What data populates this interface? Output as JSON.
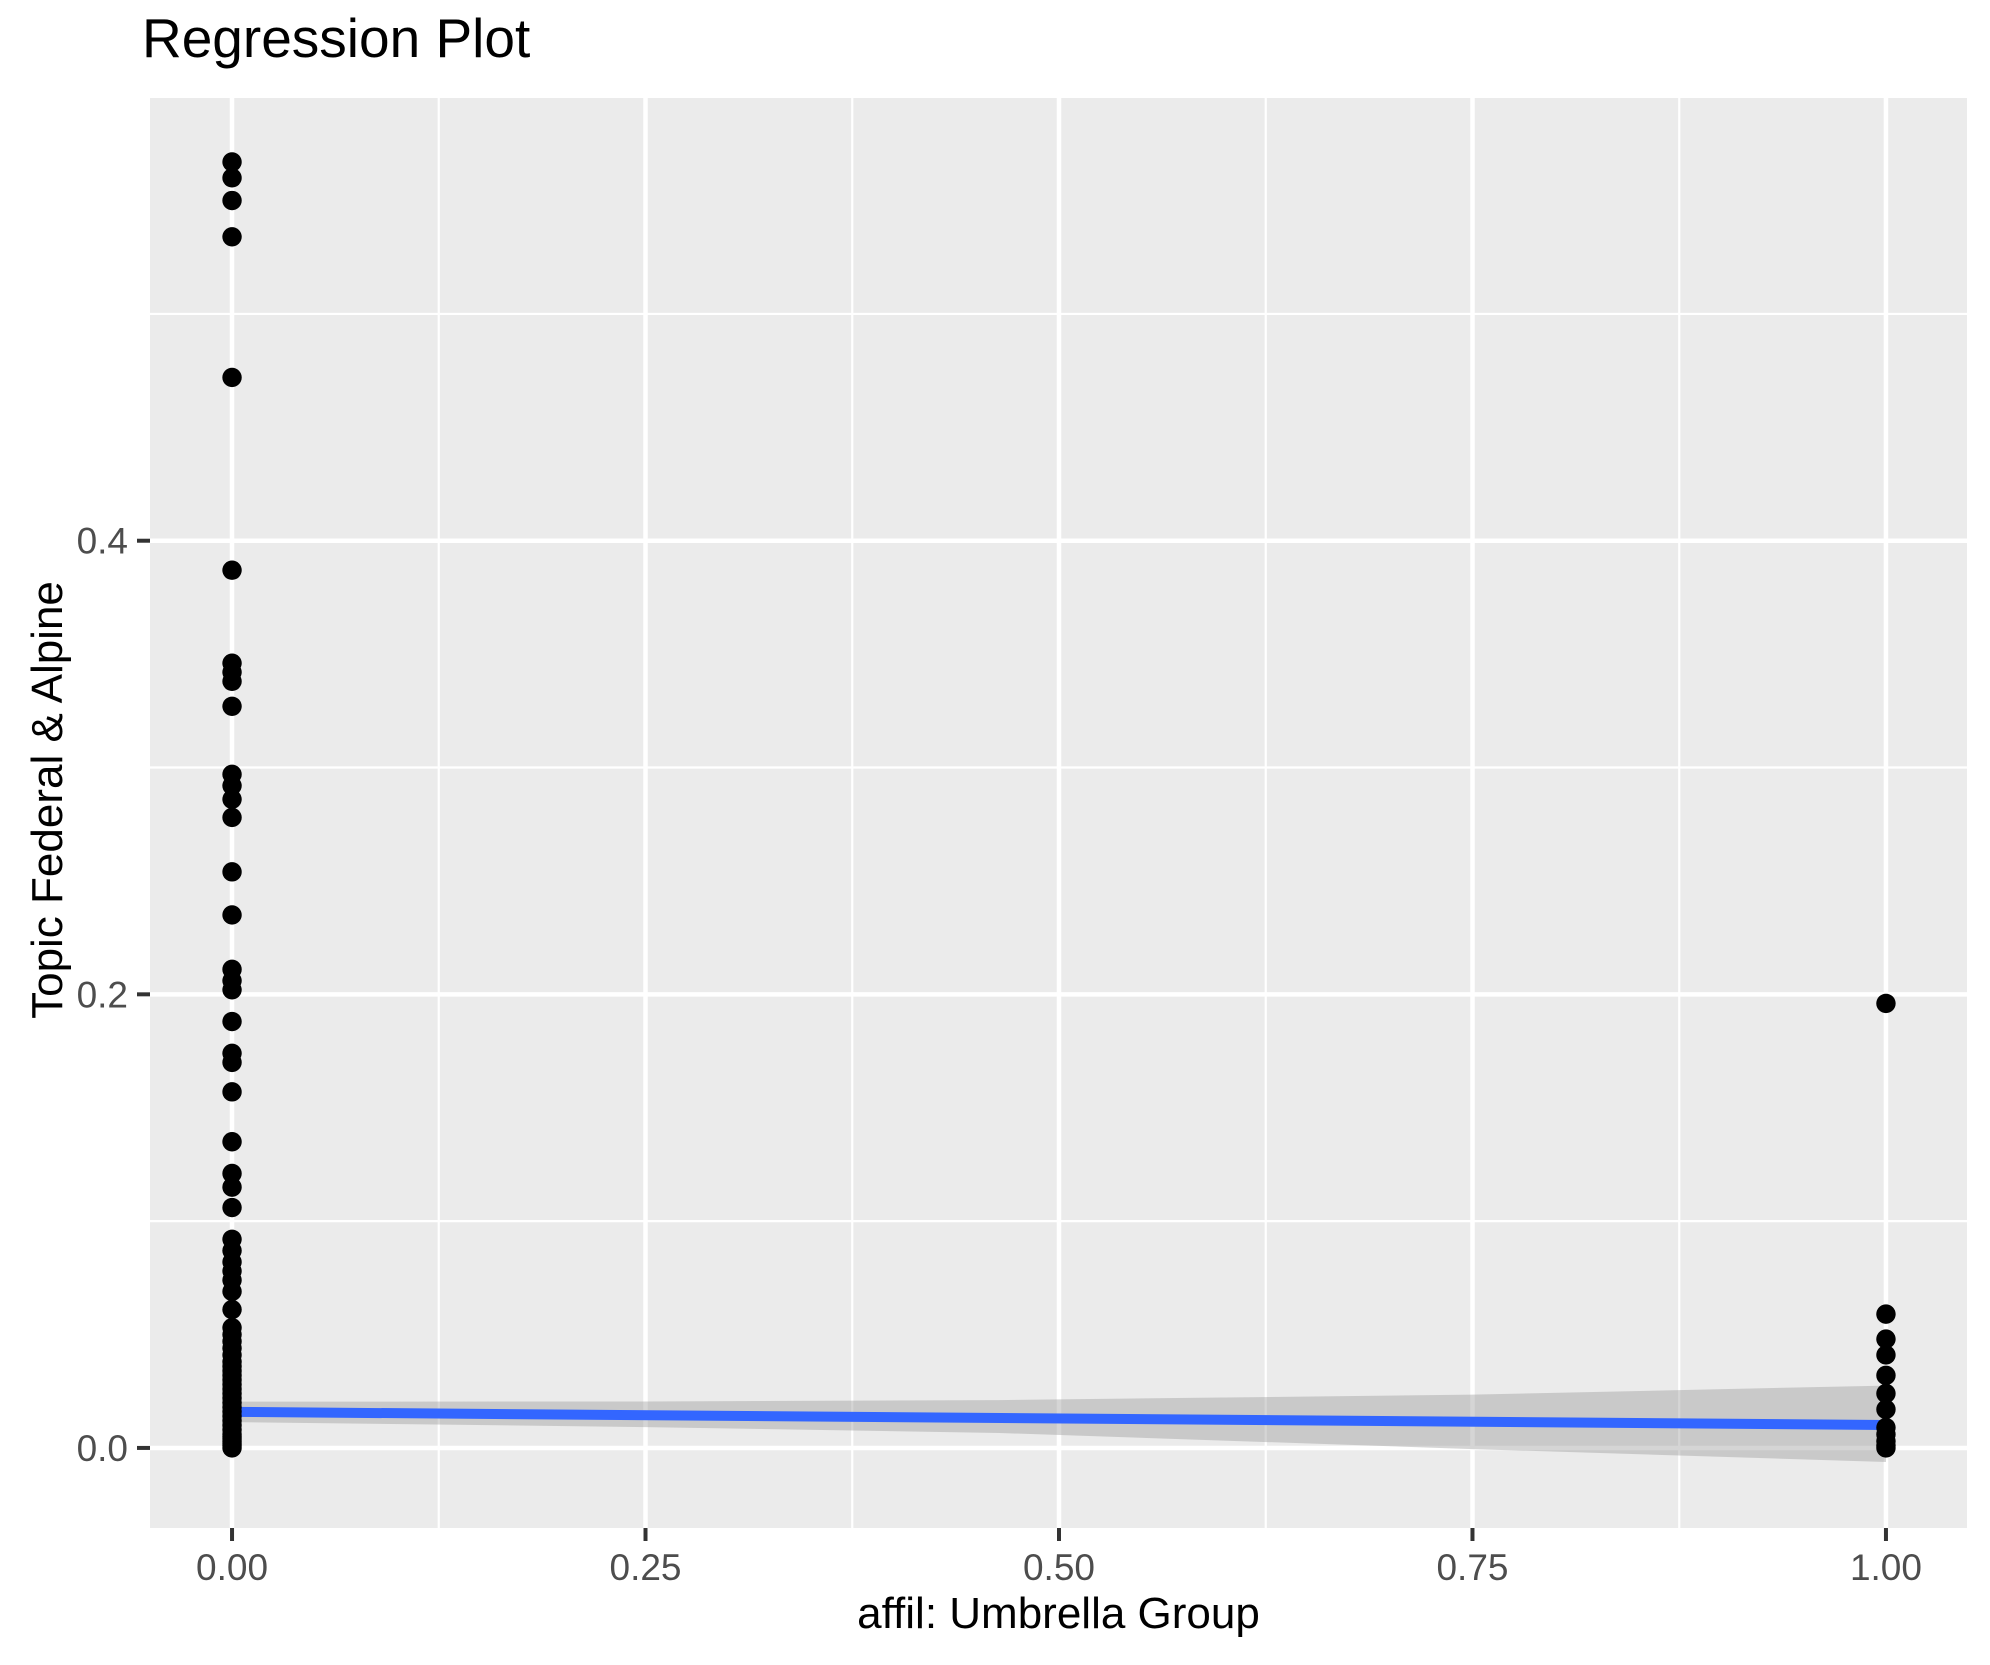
{
  "title": "Regression Plot",
  "axes": {
    "x": {
      "label": "affil: Umbrella Group",
      "tick_labels": [
        "0.00",
        "0.25",
        "0.50",
        "0.75",
        "1.00"
      ],
      "tick_values": [
        0,
        0.25,
        0.5,
        0.75,
        1
      ],
      "minor_values": [
        0.125,
        0.375,
        0.625,
        0.875
      ],
      "range": [
        -0.0496,
        1.049
      ]
    },
    "y": {
      "label": "Topic Federal & Alpine",
      "tick_labels": [
        "0.0",
        "0.2",
        "0.4"
      ],
      "tick_values": [
        0,
        0.2,
        0.4
      ],
      "minor_values": [
        0.1,
        0.3,
        0.5
      ],
      "range": [
        -0.0353,
        0.5952
      ]
    }
  },
  "colors": {
    "panel_background": "#EBEBEB",
    "gridline": "#FFFFFF",
    "point": "#000000",
    "regression_line": "#3366FF",
    "confidence_band": "rgba(153,153,153,0.41)",
    "tick_label": "#4D4D4D",
    "tick_mark": "#333333",
    "text": "#000000"
  },
  "style": {
    "point_radius": 9.7,
    "line_width": 10,
    "major_grid_width": 4.5,
    "minor_grid_width": 2.2,
    "tick_length": 13
  },
  "chart_data": {
    "type": "scatter",
    "title": "Regression Plot",
    "xlabel": "affil: Umbrella Group",
    "ylabel": "Topic Federal & Alpine",
    "xlim": [
      -0.0496,
      1.049
    ],
    "ylim": [
      -0.0353,
      0.5952
    ],
    "grid": true,
    "legend": "none",
    "series": [
      {
        "name": "affil = 0",
        "x": 0,
        "y": [
          0.567,
          0.56,
          0.55,
          0.534,
          0.472,
          0.387,
          0.346,
          0.342,
          0.338,
          0.327,
          0.297,
          0.292,
          0.286,
          0.278,
          0.254,
          0.235,
          0.211,
          0.206,
          0.202,
          0.188,
          0.174,
          0.17,
          0.157,
          0.135,
          0.121,
          0.115,
          0.106,
          0.092,
          0.087,
          0.082,
          0.078,
          0.074,
          0.069,
          0.061,
          0.053,
          0.05,
          0.047,
          0.044,
          0.041,
          0.038,
          0.036,
          0.034,
          0.032,
          0.03,
          0.028,
          0.026,
          0.024,
          0.022,
          0.02,
          0.018,
          0.016,
          0.014,
          0.012,
          0.01,
          0.008,
          0.006,
          0.005,
          0.004,
          0.003,
          0.002,
          0.001,
          0.0
        ]
      },
      {
        "name": "affil = 1",
        "x": 1,
        "y": [
          0.196,
          0.059,
          0.048,
          0.041,
          0.032,
          0.024,
          0.017,
          0.009,
          0.006,
          0.003,
          0.001,
          0.0
        ]
      }
    ],
    "regression_line": {
      "x": [
        0,
        1
      ],
      "y": [
        0.0159,
        0.0101
      ]
    },
    "confidence_band": {
      "x": [
        0,
        0.25,
        0.464,
        0.75,
        1
      ],
      "upper": [
        0.0204,
        0.0205,
        0.0211,
        0.0235,
        0.0275
      ],
      "lower": [
        0.0114,
        0.0092,
        0.0066,
        -0.0005,
        -0.0062
      ]
    }
  }
}
